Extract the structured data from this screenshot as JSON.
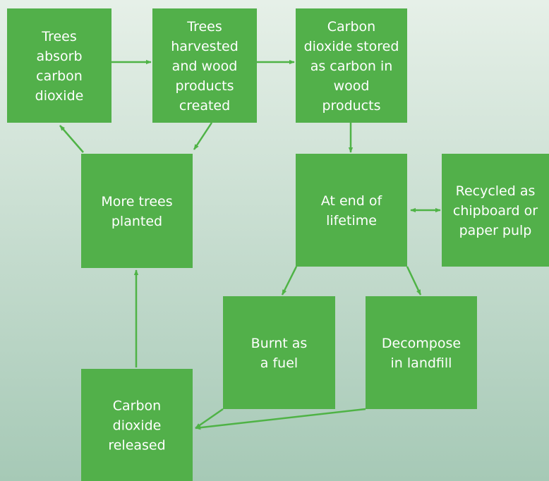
{
  "nodes": [
    {
      "lines": [
        "Trees",
        "absorb",
        "carbon",
        "dioxide"
      ]
    },
    {
      "lines": [
        "Trees",
        "harvested",
        "and wood",
        "products",
        "created"
      ]
    },
    {
      "lines": [
        "Carbon",
        "dioxide stored",
        "as carbon in",
        "wood",
        "products"
      ]
    },
    {
      "lines": [
        "More trees",
        "planted"
      ]
    },
    {
      "lines": [
        "At end of",
        "lifetime"
      ]
    },
    {
      "lines": [
        "Recycled as",
        "chipboard or",
        "paper pulp"
      ]
    },
    {
      "lines": [
        "Burnt as",
        "a fuel"
      ]
    },
    {
      "lines": [
        "Decompose",
        "in landfill"
      ]
    },
    {
      "lines": [
        "Carbon",
        "dioxide",
        "released"
      ]
    }
  ]
}
